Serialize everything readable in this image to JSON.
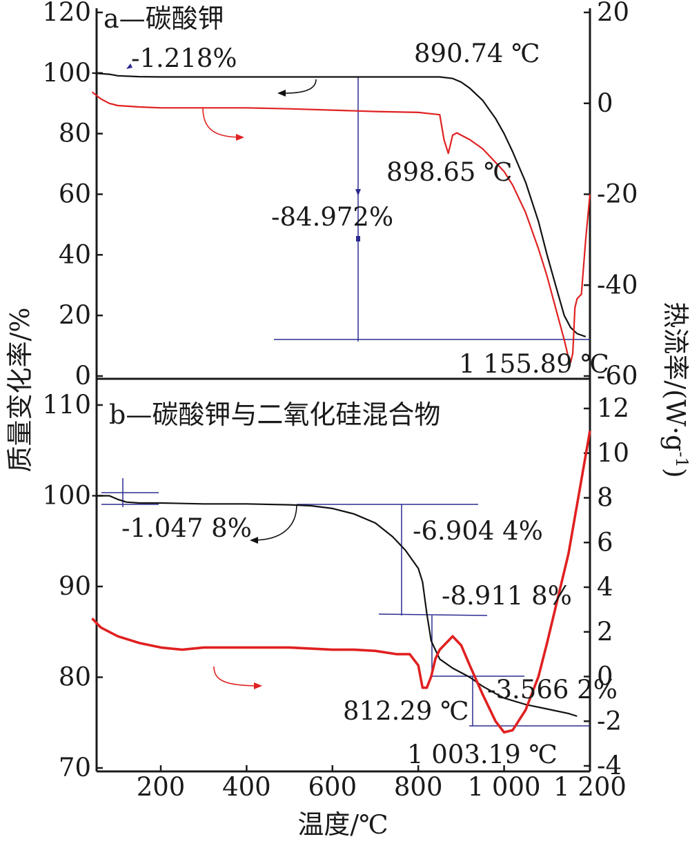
{
  "x_axis_label": "温度/℃",
  "y_left_label": "质量变化率/%",
  "y_right_label": "热流率/(W·g",
  "y_right_label_sup": "-1",
  "y_right_label_end": ")",
  "colors": {
    "tg": "#111111",
    "dsc": "#e02020",
    "guide": "#2b2b8f",
    "axis": "#1a1a1a"
  },
  "chart_data": [
    {
      "type": "line",
      "title": "a—碳酸钾",
      "xlim": [
        40,
        1200
      ],
      "ylim_left": [
        0,
        120
      ],
      "ylim_right": [
        -60,
        20
      ],
      "x_ticks": [],
      "y_left_ticks": [
        "0",
        "20",
        "40",
        "60",
        "80",
        "100",
        "120"
      ],
      "y_right_ticks": [
        "-60",
        "-40",
        "-20",
        "0",
        "20"
      ],
      "series": [
        {
          "axis": "left",
          "color": "#111111",
          "x": [
            40,
            80,
            100,
            150,
            200,
            300,
            400,
            500,
            600,
            700,
            800,
            850,
            880,
            900,
            920,
            950,
            980,
            1000,
            1020,
            1050,
            1080,
            1100,
            1120,
            1140,
            1155,
            1170,
            1190
          ],
          "y": [
            100,
            99.6,
            99.1,
            98.8,
            98.7,
            98.7,
            98.7,
            98.7,
            98.7,
            98.7,
            98.7,
            98.7,
            98.2,
            97,
            95,
            91,
            85,
            80,
            74,
            64,
            51,
            40,
            30,
            20,
            16,
            14,
            13
          ]
        },
        {
          "axis": "right",
          "color": "#e02020",
          "x": [
            40,
            60,
            80,
            100,
            150,
            200,
            300,
            400,
            500,
            600,
            700,
            800,
            850,
            860,
            870,
            875,
            880,
            890,
            900,
            920,
            950,
            980,
            1000,
            1020,
            1050,
            1080,
            1100,
            1120,
            1140,
            1150,
            1155,
            1160,
            1165,
            1170,
            1180,
            1190,
            1200
          ],
          "y": [
            2.5,
            1,
            0,
            -0.5,
            -0.8,
            -1,
            -1,
            -1,
            -1.2,
            -1.5,
            -1.8,
            -2,
            -2.5,
            -8,
            -11,
            -9,
            -7,
            -6.5,
            -7,
            -8,
            -10,
            -13,
            -15,
            -18,
            -24,
            -32,
            -38,
            -45,
            -52,
            -56,
            -57,
            -55,
            -45,
            -43,
            -42,
            -30,
            -20
          ]
        }
      ],
      "annotations": [
        "-1.218%",
        "890.74 ℃",
        "898.65 ℃",
        "-84.972%",
        "1 155.89 ℃"
      ]
    },
    {
      "type": "line",
      "title": "b—碳酸钾与二氧化硅混合物",
      "xlim": [
        40,
        1200
      ],
      "ylim_left": [
        70,
        110
      ],
      "ylim_right": [
        -4,
        12
      ],
      "x_ticks": [
        "200",
        "400",
        "600",
        "800",
        "1 000",
        "1 200"
      ],
      "y_left_ticks": [
        "70",
        "80",
        "90",
        "100",
        "110"
      ],
      "y_right_ticks": [
        "-4",
        "-2",
        "0",
        "2",
        "4",
        "6",
        "8",
        "10",
        "12"
      ],
      "series": [
        {
          "axis": "left",
          "color": "#111111",
          "x": [
            40,
            60,
            80,
            100,
            120,
            150,
            200,
            300,
            400,
            500,
            550,
            600,
            650,
            700,
            740,
            770,
            800,
            810,
            820,
            830,
            850,
            880,
            900,
            920,
            950,
            980,
            1000,
            1050,
            1100,
            1150,
            1170
          ],
          "y": [
            100,
            100,
            100,
            99.6,
            99.3,
            99.2,
            99.2,
            99.1,
            99.1,
            99,
            98.9,
            98.6,
            98,
            97,
            95.5,
            94,
            92,
            90.5,
            87,
            84,
            82,
            81,
            80.5,
            80,
            79,
            78.2,
            77.7,
            77,
            76.5,
            76,
            75.7
          ]
        },
        {
          "axis": "right",
          "color": "#e02020",
          "x": [
            40,
            60,
            80,
            100,
            150,
            200,
            250,
            300,
            400,
            500,
            600,
            650,
            700,
            750,
            780,
            800,
            810,
            820,
            830,
            840,
            850,
            870,
            880,
            900,
            920,
            950,
            980,
            1000,
            1020,
            1050,
            1080,
            1100,
            1150,
            1200
          ],
          "y": [
            2.6,
            2.2,
            2,
            1.8,
            1.5,
            1.3,
            1.2,
            1.3,
            1.3,
            1.3,
            1.2,
            1.2,
            1.15,
            1,
            1,
            0.5,
            -0.5,
            -0.5,
            0,
            0.8,
            1.2,
            1.6,
            1.8,
            1.4,
            0.5,
            -0.8,
            -2,
            -2.5,
            -2.4,
            -1.5,
            0,
            1.5,
            5.5,
            11
          ]
        }
      ],
      "annotations": [
        "-1.047 8%",
        "-6.904 4%",
        "-8.911 8%",
        "-3.566 2%",
        "812.29 ℃",
        "1 003.19 ℃"
      ]
    }
  ]
}
